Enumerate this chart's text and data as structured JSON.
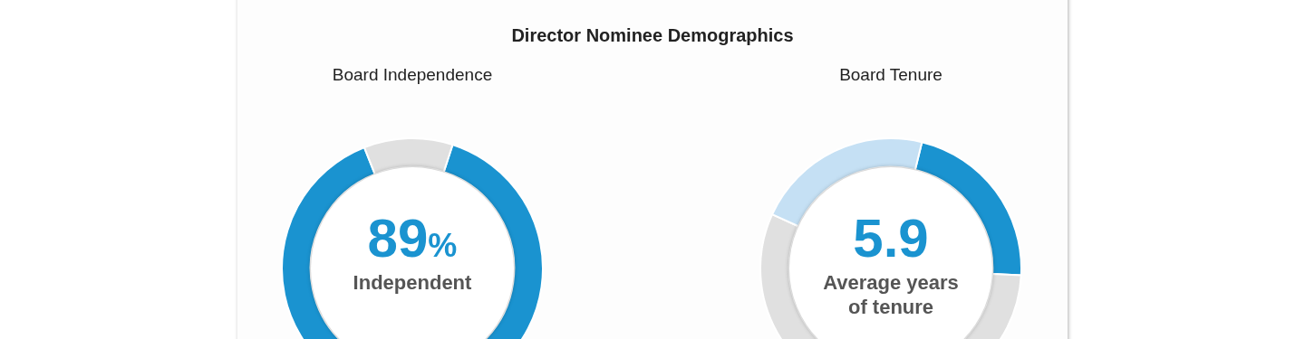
{
  "chart_data": [
    {
      "type": "donut",
      "title": "Director Nominee Demographics",
      "subtitle": "Board Independence",
      "categories": [
        null,
        null
      ],
      "values": [
        89,
        11
      ],
      "colors": [
        "#1a93d0",
        "#e0e0e0"
      ],
      "annotations": [
        "89%",
        "Independent"
      ]
    },
    {
      "type": "donut",
      "subtitle": "Board Tenure",
      "categories": [
        null,
        null,
        null
      ],
      "values": [
        22,
        56,
        22
      ],
      "colors": [
        "#1a93d0",
        "#e0e0e0",
        "#c5e0f4"
      ],
      "annotations": [
        "5.9",
        "Average years of tenure"
      ]
    }
  ]
}
